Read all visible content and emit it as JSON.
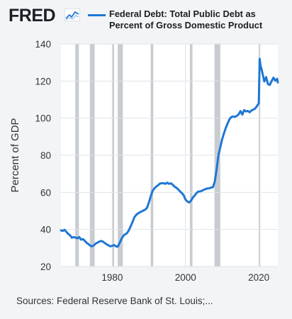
{
  "header": {
    "brand": "FRED",
    "brand_icon": "line-chart-icon"
  },
  "legend": {
    "line1": "Federal Debt: Total Public Debt as",
    "line2": "Percent of Gross Domestic Product"
  },
  "source": {
    "text": "Sources: Federal Reserve Bank of St. Louis;..."
  },
  "colors": {
    "series": "#1f77d4",
    "recession": "#c8ccd1",
    "grid": "#dfe3e7",
    "plot_bg": "#ffffff"
  },
  "chart_data": {
    "type": "line",
    "title": "",
    "xlabel": "",
    "ylabel": "Percent of GDP",
    "xlim": [
      1966,
      2025.2
    ],
    "ylim": [
      20,
      140
    ],
    "yticks": [
      20,
      40,
      60,
      80,
      100,
      120,
      140
    ],
    "xticks": [
      1980,
      2000,
      2020
    ],
    "grid": true,
    "legend_position": "top",
    "recessions": [
      [
        1969.9,
        1970.9
      ],
      [
        1973.9,
        1975.2
      ],
      [
        1980.0,
        1980.5
      ],
      [
        1981.5,
        1982.9
      ],
      [
        1990.5,
        1991.2
      ],
      [
        2001.2,
        2001.9
      ],
      [
        2007.9,
        2009.5
      ],
      [
        2020.1,
        2020.4
      ]
    ],
    "series": [
      {
        "name": "Federal Debt: Total Public Debt as Percent of Gross Domestic Product",
        "x": [
          1966,
          1966.5,
          1967,
          1967.5,
          1968,
          1968.5,
          1969,
          1969.5,
          1970,
          1970.5,
          1971,
          1971.5,
          1972,
          1972.5,
          1973,
          1973.5,
          1974,
          1974.5,
          1975,
          1975.5,
          1976,
          1976.5,
          1977,
          1977.5,
          1978,
          1978.5,
          1979,
          1979.5,
          1980,
          1980.5,
          1981,
          1981.5,
          1982,
          1982.5,
          1983,
          1983.5,
          1984,
          1984.5,
          1985,
          1985.5,
          1986,
          1986.5,
          1987,
          1987.5,
          1988,
          1988.5,
          1989,
          1989.5,
          1990,
          1990.5,
          1991,
          1991.5,
          1992,
          1992.5,
          1993,
          1993.5,
          1994,
          1994.5,
          1995,
          1995.5,
          1996,
          1996.5,
          1997,
          1997.5,
          1998,
          1998.5,
          1999,
          1999.5,
          2000,
          2000.5,
          2001,
          2001.5,
          2002,
          2002.5,
          2003,
          2003.5,
          2004,
          2004.5,
          2005,
          2005.5,
          2006,
          2006.5,
          2007,
          2007.5,
          2008,
          2008.5,
          2009,
          2009.5,
          2010,
          2010.5,
          2011,
          2011.5,
          2012,
          2012.5,
          2013,
          2013.5,
          2014,
          2014.5,
          2015,
          2015.5,
          2016,
          2016.5,
          2017,
          2017.5,
          2018,
          2018.5,
          2019,
          2019.5,
          2020,
          2020.25,
          2020.5,
          2020.75,
          2021,
          2021.5,
          2022,
          2022.5,
          2023,
          2023.5,
          2024,
          2024.5,
          2025,
          2025.2
        ],
        "values": [
          39.5,
          39.2,
          39.8,
          38.6,
          37.6,
          36.8,
          35.5,
          35.9,
          35.6,
          35.2,
          35.9,
          34.5,
          34.8,
          33.9,
          32.8,
          32.1,
          31.2,
          30.9,
          31.5,
          32.4,
          32.9,
          33.5,
          33.8,
          33.4,
          32.6,
          32.0,
          31.4,
          30.9,
          31.2,
          31.6,
          30.9,
          30.7,
          32.6,
          34.8,
          36.5,
          37.4,
          37.9,
          39.4,
          41.6,
          43.8,
          46.4,
          47.8,
          48.6,
          49.2,
          49.7,
          50.2,
          50.7,
          51.7,
          54.6,
          57.8,
          60.7,
          62.1,
          63.1,
          63.8,
          64.7,
          64.9,
          64.9,
          64.6,
          65.2,
          64.6,
          64.9,
          64.1,
          63.1,
          62.5,
          61.6,
          60.5,
          59.6,
          58.4,
          56.1,
          55.1,
          54.5,
          55.5,
          57.2,
          58.3,
          59.6,
          60.4,
          60.5,
          60.9,
          61.4,
          61.8,
          62.1,
          62.2,
          62.6,
          62.8,
          65.9,
          72.5,
          80.3,
          84.2,
          88.6,
          91.8,
          94.8,
          97.2,
          99.4,
          100.6,
          100.9,
          100.7,
          101.2,
          102.1,
          103.8,
          101.9,
          104.3,
          103.6,
          103.9,
          103.2,
          104.1,
          104.6,
          105.2,
          106.5,
          108.0,
          132.0,
          128.0,
          126.5,
          124.3,
          119.8,
          122.1,
          118.4,
          117.9,
          119.9,
          121.8,
          120.2,
          121.2,
          119.2
        ]
      }
    ]
  }
}
